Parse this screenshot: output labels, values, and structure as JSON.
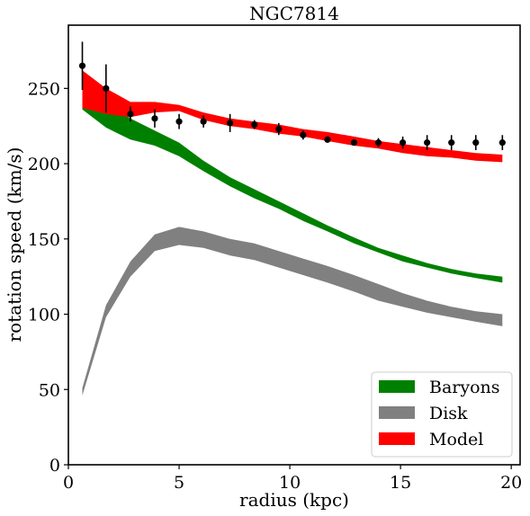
{
  "chart_data": {
    "type": "line",
    "title": "NGC7814",
    "xlabel": "radius (kpc)",
    "ylabel": "rotation speed (km/s)",
    "xlim": [
      0,
      20.4
    ],
    "ylim": [
      0,
      292
    ],
    "xticks": [
      0,
      5,
      10,
      15,
      20
    ],
    "yticks": [
      0,
      50,
      100,
      150,
      200,
      250
    ],
    "legend_position": "bottom-right",
    "series": [
      {
        "name": "Baryons",
        "kind": "band",
        "color": "#008000",
        "x": [
          0.63,
          1.7,
          2.8,
          3.9,
          5.0,
          6.1,
          7.3,
          8.4,
          9.5,
          10.6,
          11.7,
          12.9,
          14.0,
          15.1,
          16.2,
          17.3,
          18.4,
          19.6
        ],
        "upper": [
          260,
          242,
          230,
          222,
          214,
          202,
          191,
          183,
          175,
          167,
          159,
          151,
          144,
          139,
          134,
          130,
          127,
          125
        ],
        "lower": [
          236,
          224,
          216,
          212,
          205,
          195,
          185,
          177,
          170,
          162,
          155,
          147,
          141,
          135,
          131,
          127,
          124,
          121
        ]
      },
      {
        "name": "Disk",
        "kind": "band",
        "color": "#808080",
        "x": [
          0.63,
          1.7,
          2.8,
          3.9,
          5.0,
          6.1,
          7.3,
          8.4,
          9.5,
          10.6,
          11.7,
          12.9,
          14.0,
          15.1,
          16.2,
          17.3,
          18.4,
          19.6
        ],
        "upper": [
          51,
          106,
          135,
          153,
          158,
          155,
          150,
          147,
          142,
          137,
          132,
          126,
          120,
          114,
          109,
          105,
          102,
          100
        ],
        "lower": [
          46,
          98,
          125,
          142,
          146,
          144,
          139,
          136,
          131,
          126,
          121,
          115,
          109,
          105,
          101,
          98,
          95,
          92
        ]
      },
      {
        "name": "Model",
        "kind": "band",
        "color": "#ff0000",
        "x": [
          0.63,
          1.7,
          2.8,
          3.9,
          5.0,
          6.1,
          7.3,
          8.4,
          9.5,
          10.6,
          11.7,
          12.9,
          14.0,
          15.1,
          16.2,
          17.3,
          18.4,
          19.6
        ],
        "upper": [
          262,
          250,
          241,
          241,
          239,
          234,
          230,
          228,
          226,
          223,
          221,
          218,
          215,
          213,
          211,
          209,
          207,
          206
        ],
        "lower": [
          237,
          233,
          231,
          234,
          235,
          229,
          225,
          223,
          220,
          218,
          215,
          212,
          210,
          207,
          205,
          204,
          202,
          201
        ]
      },
      {
        "name": "observed",
        "kind": "errorbar",
        "color": "#000000",
        "x": [
          0.63,
          1.7,
          2.8,
          3.9,
          5.0,
          6.1,
          7.3,
          8.4,
          9.5,
          10.6,
          11.7,
          12.9,
          14.0,
          15.1,
          16.2,
          17.3,
          18.4,
          19.6
        ],
        "y": [
          265,
          250,
          233,
          230,
          228,
          228,
          227,
          226,
          223,
          219,
          216,
          214,
          214,
          214,
          214,
          214,
          214,
          214
        ],
        "yerr": [
          16,
          16,
          5,
          6,
          5,
          4,
          6,
          3,
          4,
          3,
          2,
          2,
          3,
          4,
          5,
          5,
          5,
          5
        ]
      }
    ]
  }
}
